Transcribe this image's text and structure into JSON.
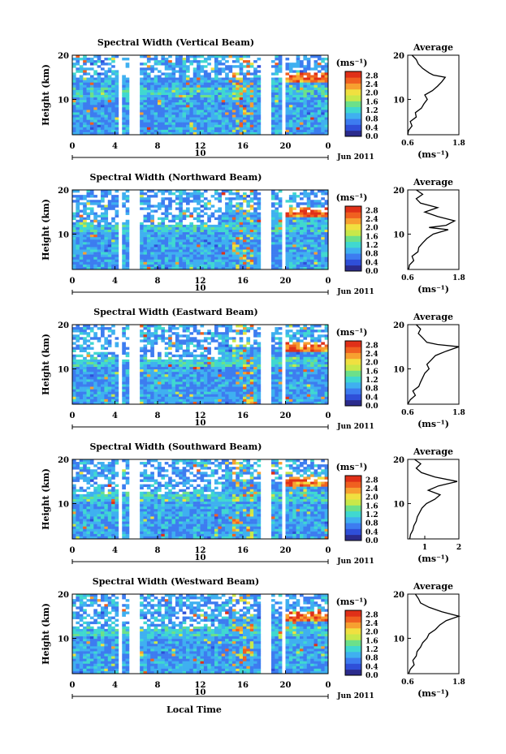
{
  "chart_data": {
    "type": "heatmap",
    "xlabel": "Local Time",
    "date_label": "Jun 2011",
    "day_label": "10",
    "x_ticks": [
      "0",
      "4",
      "8",
      "12",
      "16",
      "20",
      "0"
    ],
    "xlim": [
      0,
      24
    ],
    "ylabel": "Height (km)",
    "y_ticks": [
      "10",
      "20"
    ],
    "ylim": [
      2,
      20
    ],
    "colorbar": {
      "unit": "(ms⁻¹)",
      "ticks": [
        "0.0",
        "0.4",
        "0.8",
        "1.2",
        "1.6",
        "2.0",
        "2.4",
        "2.8"
      ],
      "range": [
        0,
        3.0
      ],
      "colors": [
        "#2b2b8c",
        "#2f4fd8",
        "#3d7cf0",
        "#3fb0f0",
        "#40d8d0",
        "#6ce08a",
        "#c8e84a",
        "#f0e040",
        "#f7a030",
        "#f06020",
        "#e03018"
      ]
    },
    "data_gaps_hours": [
      [
        4.2,
        4.6
      ],
      [
        5.2,
        5.5
      ],
      [
        5.8,
        6.2
      ],
      [
        17.8,
        18.6
      ],
      [
        19.6,
        20.1
      ]
    ],
    "average_panel": {
      "title": "Average",
      "xlabel": "(ms⁻¹)",
      "y_ticks": [
        "10",
        "20"
      ]
    },
    "panels": [
      {
        "title": "Spectral Width (Vertical Beam)",
        "avg_x_ticks": [
          "0.6",
          "1.8"
        ],
        "avg_xlim": [
          0.6,
          1.8
        ],
        "average_profile": [
          [
            2,
            0.6
          ],
          [
            3,
            0.62
          ],
          [
            4,
            0.7
          ],
          [
            5,
            0.66
          ],
          [
            6,
            0.8
          ],
          [
            7,
            0.78
          ],
          [
            8,
            0.92
          ],
          [
            9,
            0.98
          ],
          [
            10,
            1.06
          ],
          [
            11,
            1.0
          ],
          [
            12,
            1.18
          ],
          [
            13,
            1.3
          ],
          [
            14,
            1.4
          ],
          [
            15,
            1.48
          ],
          [
            15.5,
            1.2
          ],
          [
            16,
            1.1
          ],
          [
            17,
            0.95
          ],
          [
            18,
            0.85
          ],
          [
            19,
            0.8
          ],
          [
            20,
            0.7
          ]
        ]
      },
      {
        "title": "Spectral Width (Northward Beam)",
        "avg_x_ticks": [
          "0.6",
          "1.8"
        ],
        "avg_xlim": [
          0.6,
          1.8
        ],
        "average_profile": [
          [
            2,
            0.62
          ],
          [
            3,
            0.64
          ],
          [
            4,
            0.74
          ],
          [
            5,
            0.7
          ],
          [
            6,
            0.84
          ],
          [
            7,
            0.86
          ],
          [
            8,
            0.95
          ],
          [
            9,
            1.05
          ],
          [
            10,
            1.2
          ],
          [
            11,
            1.55
          ],
          [
            11.5,
            1.1
          ],
          [
            12,
            1.5
          ],
          [
            13,
            1.7
          ],
          [
            14,
            1.3
          ],
          [
            15,
            1.0
          ],
          [
            16,
            1.3
          ],
          [
            17,
            0.9
          ],
          [
            18,
            0.8
          ],
          [
            19,
            0.95
          ],
          [
            20,
            0.8
          ]
        ]
      },
      {
        "title": "Spectral Width (Eastward Beam)",
        "avg_x_ticks": [
          "0.6",
          "1.8"
        ],
        "avg_xlim": [
          0.6,
          1.8
        ],
        "average_profile": [
          [
            2,
            0.6
          ],
          [
            3,
            0.66
          ],
          [
            4,
            0.78
          ],
          [
            5,
            0.72
          ],
          [
            6,
            0.86
          ],
          [
            7,
            0.9
          ],
          [
            8,
            0.95
          ],
          [
            9,
            1.0
          ],
          [
            10,
            1.1
          ],
          [
            11,
            1.05
          ],
          [
            12,
            1.15
          ],
          [
            13,
            1.25
          ],
          [
            14,
            1.5
          ],
          [
            15,
            1.8
          ],
          [
            15.5,
            1.3
          ],
          [
            16,
            1.05
          ],
          [
            17,
            0.95
          ],
          [
            18,
            0.85
          ],
          [
            19,
            0.9
          ],
          [
            20,
            0.8
          ]
        ]
      },
      {
        "title": "Spectral Width (Southward Beam)",
        "avg_x_ticks": [
          "1",
          "2"
        ],
        "avg_xlim": [
          0.5,
          2.0
        ],
        "average_profile": [
          [
            2,
            0.56
          ],
          [
            3,
            0.58
          ],
          [
            4,
            0.65
          ],
          [
            5,
            0.68
          ],
          [
            6,
            0.75
          ],
          [
            7,
            0.78
          ],
          [
            8,
            0.85
          ],
          [
            9,
            0.92
          ],
          [
            10,
            1.05
          ],
          [
            11,
            1.3
          ],
          [
            12,
            1.45
          ],
          [
            13,
            1.1
          ],
          [
            14,
            1.4
          ],
          [
            15,
            1.95
          ],
          [
            16,
            1.3
          ],
          [
            17,
            0.9
          ],
          [
            18,
            0.75
          ],
          [
            19,
            0.88
          ],
          [
            20,
            0.7
          ]
        ]
      },
      {
        "title": "Spectral Width (Westward Beam)",
        "avg_x_ticks": [
          "0.6",
          "1.8"
        ],
        "avg_xlim": [
          0.6,
          1.8
        ],
        "average_profile": [
          [
            2,
            0.62
          ],
          [
            3,
            0.66
          ],
          [
            4,
            0.75
          ],
          [
            5,
            0.72
          ],
          [
            6,
            0.8
          ],
          [
            7,
            0.82
          ],
          [
            8,
            0.9
          ],
          [
            9,
            0.95
          ],
          [
            10,
            1.05
          ],
          [
            11,
            1.1
          ],
          [
            12,
            1.25
          ],
          [
            13,
            1.35
          ],
          [
            14,
            1.5
          ],
          [
            15,
            1.8
          ],
          [
            16,
            1.4
          ],
          [
            17,
            1.1
          ],
          [
            18,
            0.9
          ],
          [
            19,
            0.85
          ],
          [
            20,
            0.78
          ]
        ]
      }
    ]
  }
}
